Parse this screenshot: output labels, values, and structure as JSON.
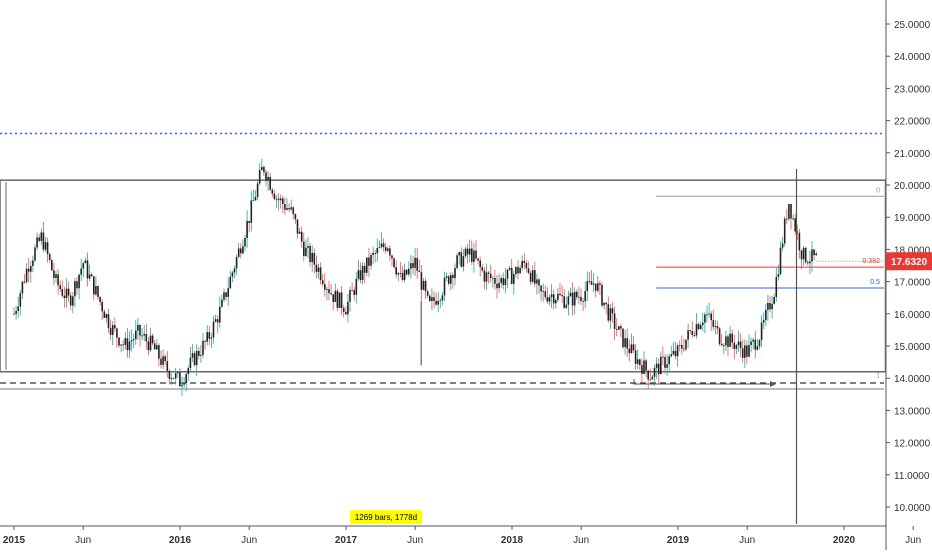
{
  "chart_data": {
    "type": "candlestick",
    "title": "",
    "xlabel": "",
    "ylabel": "",
    "ylim": [
      9.5,
      25.6
    ],
    "x_tick_labels": [
      "2015",
      "Jun",
      "2016",
      "Jun",
      "2017",
      "Jun",
      "2018",
      "Jun",
      "2019",
      "Jun",
      "2020",
      "Jun"
    ],
    "y_tick_labels": [
      "25.0000",
      "24.0000",
      "23.0000",
      "22.0000",
      "21.0000",
      "20.0000",
      "19.0000",
      "18.0000",
      "17.0000",
      "16.0000",
      "15.0000",
      "14.0000",
      "13.0000",
      "12.0000",
      "11.0000",
      "10.0000"
    ],
    "y_ticks": [
      25,
      24,
      23,
      22,
      21,
      20,
      19,
      18,
      17,
      16,
      15,
      14,
      13,
      12,
      11,
      10
    ],
    "x_range": [
      "2015-01",
      "2020-06"
    ],
    "grid": false,
    "price_path": [
      {
        "x": "2015-01",
        "y": 16.0
      },
      {
        "x": "2015-02",
        "y": 17.5
      },
      {
        "x": "2015-03",
        "y": 18.4
      },
      {
        "x": "2015-04",
        "y": 17.0
      },
      {
        "x": "2015-05",
        "y": 16.4
      },
      {
        "x": "2015-06",
        "y": 17.6
      },
      {
        "x": "2015-07",
        "y": 16.6
      },
      {
        "x": "2015-08",
        "y": 15.6
      },
      {
        "x": "2015-09",
        "y": 15.0
      },
      {
        "x": "2015-10",
        "y": 15.4
      },
      {
        "x": "2015-11",
        "y": 15.0
      },
      {
        "x": "2015-12",
        "y": 14.3
      },
      {
        "x": "2016-01",
        "y": 13.9
      },
      {
        "x": "2016-02",
        "y": 14.6
      },
      {
        "x": "2016-03",
        "y": 15.2
      },
      {
        "x": "2016-04",
        "y": 16.2
      },
      {
        "x": "2016-05",
        "y": 17.6
      },
      {
        "x": "2016-06",
        "y": 19.0
      },
      {
        "x": "2016-07",
        "y": 20.6
      },
      {
        "x": "2016-08",
        "y": 19.6
      },
      {
        "x": "2016-09",
        "y": 19.2
      },
      {
        "x": "2016-10",
        "y": 18.0
      },
      {
        "x": "2016-11",
        "y": 17.4
      },
      {
        "x": "2016-12",
        "y": 16.6
      },
      {
        "x": "2017-01",
        "y": 16.2
      },
      {
        "x": "2017-02",
        "y": 17.2
      },
      {
        "x": "2017-03",
        "y": 17.8
      },
      {
        "x": "2017-04",
        "y": 18.2
      },
      {
        "x": "2017-05",
        "y": 17.0
      },
      {
        "x": "2017-06",
        "y": 17.6
      },
      {
        "x": "2017-07",
        "y": 16.2
      },
      {
        "x": "2017-08",
        "y": 16.8
      },
      {
        "x": "2017-09",
        "y": 17.6
      },
      {
        "x": "2017-10",
        "y": 17.9
      },
      {
        "x": "2017-11",
        "y": 17.2
      },
      {
        "x": "2017-12",
        "y": 17.0
      },
      {
        "x": "2018-01",
        "y": 17.2
      },
      {
        "x": "2018-02",
        "y": 17.6
      },
      {
        "x": "2018-03",
        "y": 16.6
      },
      {
        "x": "2018-04",
        "y": 16.6
      },
      {
        "x": "2018-05",
        "y": 16.4
      },
      {
        "x": "2018-06",
        "y": 16.6
      },
      {
        "x": "2018-07",
        "y": 17.0
      },
      {
        "x": "2018-08",
        "y": 16.0
      },
      {
        "x": "2018-09",
        "y": 15.2
      },
      {
        "x": "2018-10",
        "y": 14.6
      },
      {
        "x": "2018-11",
        "y": 14.1
      },
      {
        "x": "2018-12",
        "y": 14.5
      },
      {
        "x": "2019-01",
        "y": 14.8
      },
      {
        "x": "2019-02",
        "y": 15.5
      },
      {
        "x": "2019-03",
        "y": 16.0
      },
      {
        "x": "2019-04",
        "y": 15.3
      },
      {
        "x": "2019-05",
        "y": 15.1
      },
      {
        "x": "2019-06",
        "y": 14.8
      },
      {
        "x": "2019-07",
        "y": 15.4
      },
      {
        "x": "2019-08",
        "y": 16.8
      },
      {
        "x": "2019-09",
        "y": 19.5
      },
      {
        "x": "2019-10",
        "y": 17.8
      },
      {
        "x": "2019-11",
        "y": 17.7
      }
    ],
    "annotations": {
      "current_price": "17.6320",
      "current_price_value": 17.632,
      "resistance_dotted": 21.6,
      "range_box": {
        "x_start": "2015-01",
        "x_end": "2020-04",
        "top": 20.15,
        "bottom": 14.2
      },
      "support_dashed": 13.85,
      "fib_levels": [
        {
          "label": "0",
          "value": 19.65,
          "color": "#999999"
        },
        {
          "label": "0.382",
          "value": 17.45,
          "color": "#e53935"
        },
        {
          "label": "0.5",
          "value": 16.8,
          "color": "#2962ff"
        },
        {
          "label": "1",
          "value": 13.9,
          "color": "#999999"
        }
      ],
      "bars_label": "1269 bars, 1778d",
      "crosshair_x": "2019-10"
    },
    "colors": {
      "up": "#26a69a",
      "down": "#ef5350",
      "body": "#222222",
      "price_tag": "#e53935",
      "dotted_line": "#2962ff",
      "bars_label_bg": "#ffff00"
    }
  }
}
